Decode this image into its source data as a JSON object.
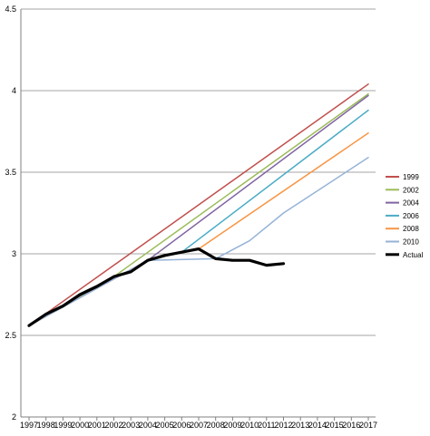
{
  "chart_data": {
    "type": "line",
    "title": "",
    "xlabel": "",
    "ylabel": "",
    "x": [
      1997,
      1998,
      1999,
      2000,
      2001,
      2002,
      2003,
      2004,
      2005,
      2006,
      2007,
      2008,
      2009,
      2010,
      2011,
      2012,
      2013,
      2014,
      2015,
      2016,
      2017
    ],
    "xlim": [
      1997,
      2017
    ],
    "ylim": [
      2,
      4.5
    ],
    "yticks": [
      "2",
      "2.5",
      "3",
      "3.5",
      "4",
      "4.5"
    ],
    "grid": "horizontal",
    "legend_position": "right",
    "series": [
      {
        "name": "1999",
        "color": "#c0504d",
        "width": 1.5,
        "points": [
          [
            1997,
            2.56
          ],
          [
            2017,
            4.04
          ]
        ]
      },
      {
        "name": "2002",
        "color": "#9bbb59",
        "width": 1.5,
        "points": [
          [
            1997,
            2.56
          ],
          [
            2002,
            2.86
          ],
          [
            2017,
            3.98
          ]
        ]
      },
      {
        "name": "2004",
        "color": "#8064a2",
        "width": 1.5,
        "points": [
          [
            1997,
            2.56
          ],
          [
            2004,
            2.96
          ],
          [
            2017,
            3.97
          ]
        ]
      },
      {
        "name": "2006",
        "color": "#4bacc6",
        "width": 1.5,
        "points": [
          [
            1997,
            2.56
          ],
          [
            2004,
            2.96
          ],
          [
            2006,
            3.01
          ],
          [
            2017,
            3.88
          ]
        ]
      },
      {
        "name": "2008",
        "color": "#f79646",
        "width": 1.5,
        "points": [
          [
            1997,
            2.56
          ],
          [
            2004,
            2.96
          ],
          [
            2006,
            3.01
          ],
          [
            2007,
            3.03
          ],
          [
            2017,
            3.74
          ]
        ]
      },
      {
        "name": "2010",
        "color": "#95b3d7",
        "width": 1.5,
        "points": [
          [
            1997,
            2.56
          ],
          [
            2004,
            2.96
          ],
          [
            2008,
            2.97
          ],
          [
            2010,
            3.08
          ],
          [
            2012,
            3.25
          ],
          [
            2017,
            3.59
          ]
        ]
      },
      {
        "name": "Actual",
        "color": "#000000",
        "width": 3.2,
        "points": [
          [
            1997,
            2.56
          ],
          [
            1998,
            2.63
          ],
          [
            1999,
            2.68
          ],
          [
            2000,
            2.75
          ],
          [
            2001,
            2.8
          ],
          [
            2002,
            2.86
          ],
          [
            2003,
            2.89
          ],
          [
            2004,
            2.96
          ],
          [
            2005,
            2.99
          ],
          [
            2006,
            3.01
          ],
          [
            2007,
            3.03
          ],
          [
            2008,
            2.97
          ],
          [
            2009,
            2.96
          ],
          [
            2010,
            2.96
          ],
          [
            2011,
            2.93
          ],
          [
            2012,
            2.94
          ]
        ]
      }
    ]
  }
}
